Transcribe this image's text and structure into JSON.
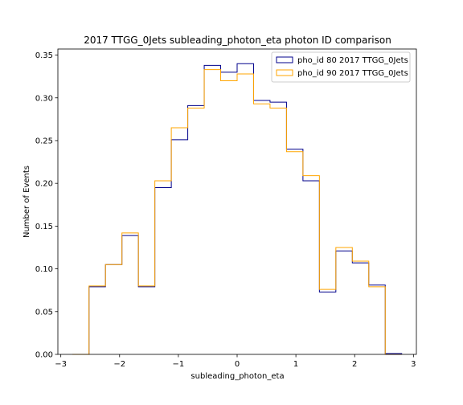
{
  "chart_data": {
    "type": "histogram-step",
    "title": "2017 TTGG_0Jets subleading_photon_eta photon ID comparison",
    "xlabel": "subleading_photon_eta",
    "ylabel": "Number of Events",
    "xlim": [
      -3.05,
      3.05
    ],
    "ylim": [
      0.0,
      0.3571
    ],
    "xticks": [
      -3,
      -2,
      -1,
      0,
      1,
      2,
      3
    ],
    "xtick_labels": [
      "−3",
      "−2",
      "−1",
      "0",
      "1",
      "2",
      "3"
    ],
    "yticks": [
      0.0,
      0.05,
      0.1,
      0.15,
      0.2,
      0.25,
      0.3,
      0.35
    ],
    "ytick_labels": [
      "0.00",
      "0.05",
      "0.10",
      "0.15",
      "0.20",
      "0.25",
      "0.30",
      "0.35"
    ],
    "bin_edges": [
      -2.8,
      -2.52,
      -2.24,
      -1.96,
      -1.68,
      -1.4,
      -1.12,
      -0.84,
      -0.56,
      -0.28,
      0.0,
      0.28,
      0.56,
      0.84,
      1.12,
      1.4,
      1.68,
      1.96,
      2.24,
      2.52,
      2.8
    ],
    "series": [
      {
        "name": "pho_id 80 2017 TTGG_0Jets",
        "color": "#00008b",
        "values": [
          0.0,
          0.079,
          0.105,
          0.139,
          0.079,
          0.195,
          0.251,
          0.291,
          0.338,
          0.33,
          0.34,
          0.297,
          0.295,
          0.24,
          0.203,
          0.073,
          0.121,
          0.107,
          0.081,
          0.001
        ]
      },
      {
        "name": "pho_id 90 2017 TTGG_0Jets",
        "color": "#ffa500",
        "values": [
          0.0,
          0.08,
          0.105,
          0.142,
          0.08,
          0.203,
          0.265,
          0.288,
          0.333,
          0.32,
          0.328,
          0.293,
          0.288,
          0.237,
          0.209,
          0.076,
          0.125,
          0.109,
          0.079,
          0.0
        ]
      }
    ],
    "legend_position": "top-right",
    "grid": false
  }
}
